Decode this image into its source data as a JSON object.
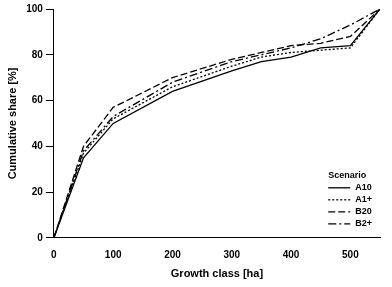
{
  "chart_data": {
    "type": "line",
    "x_label": "Growth class [ha]",
    "y_label": "Cumulative share [%]",
    "legend_title": "Scenario",
    "legend": "bottom-right",
    "grid": false,
    "x": [
      0,
      50,
      100,
      200,
      300,
      350,
      400,
      450,
      500,
      550
    ],
    "xlim": [
      0,
      550
    ],
    "xticks": [
      0,
      100,
      200,
      300,
      400,
      500
    ],
    "ylim": [
      0,
      100
    ],
    "yticks": [
      0,
      20,
      40,
      60,
      80,
      100
    ],
    "series": [
      {
        "name": "A10",
        "color": "#000000",
        "line_style": "solid",
        "values": [
          0,
          35,
          50,
          64,
          73,
          77,
          79,
          83,
          84,
          100
        ]
      },
      {
        "name": "A1+",
        "color": "#000000",
        "line_style": "dotted",
        "values": [
          0,
          37,
          52,
          66,
          75,
          79,
          81,
          82,
          83,
          100
        ]
      },
      {
        "name": "B20",
        "color": "#000000",
        "line_style": "dashed",
        "values": [
          0,
          40,
          57,
          70,
          78,
          81,
          84,
          85,
          88,
          100
        ]
      },
      {
        "name": "B2+",
        "color": "#000000",
        "line_style": "dashdot",
        "values": [
          0,
          38,
          53,
          68,
          77,
          80,
          83,
          87,
          93,
          100
        ]
      }
    ]
  }
}
